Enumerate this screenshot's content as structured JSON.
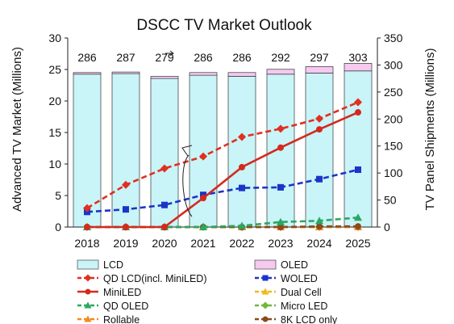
{
  "chart_data": {
    "type": "bar",
    "title": "DSCC TV Market Outlook",
    "ylabel": "Advanced TV Market (Millions)",
    "y2label": "TV Panel Shipments (Millions)",
    "categories": [
      "2018",
      "2019",
      "2020",
      "2021",
      "2022",
      "2023",
      "2024",
      "2025"
    ],
    "ylim": [
      0,
      30
    ],
    "y2lim": [
      0,
      350
    ],
    "yticks": [
      0,
      5,
      10,
      15,
      20,
      25,
      30
    ],
    "y2ticks": [
      0,
      50,
      100,
      150,
      200,
      250,
      300,
      350
    ],
    "totals": [
      286,
      287,
      279,
      286,
      286,
      292,
      297,
      303
    ],
    "bars": [
      {
        "name": "LCD",
        "axis": "right",
        "color": "#c9f4f8",
        "values": [
          283,
          284,
          275,
          281,
          279,
          283,
          285,
          289
        ]
      },
      {
        "name": "OLED",
        "axis": "right",
        "color": "#f5c9f0",
        "values": [
          3,
          3,
          4,
          5,
          7,
          9,
          12,
          14
        ]
      }
    ],
    "series": [
      {
        "name": "QD LCD(incl. MiniLED)",
        "axis": "left",
        "color": "#e03020",
        "style": "dashed",
        "marker": "diamond",
        "values": [
          3.0,
          6.7,
          9.3,
          11.2,
          14.3,
          15.6,
          17.2,
          19.8
        ]
      },
      {
        "name": "WOLED",
        "axis": "left",
        "color": "#1a35c8",
        "style": "dashed",
        "marker": "square",
        "values": [
          2.4,
          2.8,
          3.5,
          5.1,
          6.2,
          6.3,
          7.6,
          9.1
        ]
      },
      {
        "name": "MiniLED",
        "axis": "left",
        "color": "#d42a1e",
        "style": "solid",
        "marker": "circle",
        "values": [
          0,
          0,
          0,
          4.6,
          9.5,
          12.6,
          15.5,
          18.2
        ]
      },
      {
        "name": "Dual Cell",
        "axis": "left",
        "color": "#f2b81c",
        "style": "dashed",
        "marker": "triangle",
        "values": [
          0,
          0,
          0,
          0,
          0,
          0,
          0,
          0
        ]
      },
      {
        "name": "QD OLED",
        "axis": "left",
        "color": "#2aa862",
        "style": "dashed",
        "marker": "triangle",
        "values": [
          0,
          0,
          0,
          0,
          0.2,
          0.8,
          1.0,
          1.5
        ]
      },
      {
        "name": "Micro LED",
        "axis": "left",
        "color": "#72b63a",
        "style": "dashed",
        "marker": "diamond",
        "values": [
          0,
          0,
          0,
          0,
          0,
          0,
          0,
          0
        ]
      },
      {
        "name": "Rollable",
        "axis": "left",
        "color": "#f28a20",
        "style": "dashed",
        "marker": "triangle",
        "values": [
          0,
          0,
          0,
          0,
          0,
          0,
          0,
          0
        ]
      },
      {
        "name": "8K LCD only",
        "axis": "left",
        "color": "#8a4a1c",
        "style": "dashed",
        "marker": "circle",
        "values": [
          0,
          0,
          0,
          0,
          0,
          0,
          0.1,
          0.1
        ]
      }
    ],
    "legend": {
      "position": "bottom",
      "order": [
        "LCD",
        "OLED",
        "QD LCD(incl. MiniLED)",
        "WOLED",
        "MiniLED",
        "Dual Cell",
        "QD OLED",
        "Micro LED",
        "Rollable",
        "8K LCD only"
      ]
    },
    "grid": false
  }
}
